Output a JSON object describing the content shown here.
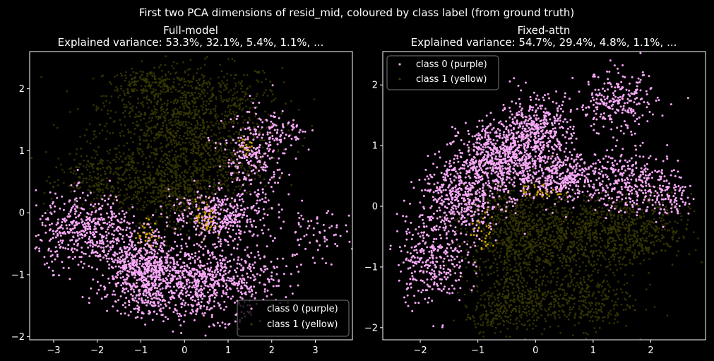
{
  "suptitle": "First two PCA dimensions of resid_mid, coloured by class label (from ground truth)",
  "colors": {
    "background": "#000000",
    "class0": "#f7a8f7",
    "class1": "#3a3a05",
    "class1_boundary": "#c8a000",
    "axes": "#ffffff"
  },
  "chart_data": [
    {
      "type": "scatter",
      "title": "Full-model",
      "subtitle": "Explained variance: 53.3%, 32.1%, 5.4%, 1.1%,  ...",
      "xlabel": "",
      "ylabel": "",
      "xlim": [
        -3.55,
        3.85
      ],
      "ylim": [
        -2.05,
        2.6
      ],
      "xticks": [
        -3,
        -2,
        -1,
        0,
        1,
        2,
        3
      ],
      "xtick_labels": [
        "−3",
        "−2",
        "−1",
        "0",
        "1",
        "2",
        "3"
      ],
      "yticks": [
        -2,
        -1,
        0,
        1,
        2
      ],
      "ytick_labels": [
        "−2",
        "−1",
        "0",
        "1",
        "2"
      ],
      "legend_position": "lower right",
      "series": [
        {
          "name": "class 0 (purple)",
          "color": "#f7a8f7",
          "clusters": [
            {
              "cx": -2.2,
              "cy": -0.3,
              "sx": 0.6,
              "sy": 0.3,
              "n": 500
            },
            {
              "cx": -1.0,
              "cy": -0.85,
              "sx": 0.4,
              "sy": 0.2,
              "n": 400
            },
            {
              "cx": 0.3,
              "cy": -1.1,
              "sx": 0.9,
              "sy": 0.3,
              "n": 900
            },
            {
              "cx": 0.9,
              "cy": -0.05,
              "sx": 0.6,
              "sy": 0.2,
              "n": 350
            },
            {
              "cx": 1.6,
              "cy": 0.9,
              "sx": 0.35,
              "sy": 0.35,
              "n": 250
            },
            {
              "cx": 2.3,
              "cy": 1.3,
              "sx": 0.3,
              "sy": 0.15,
              "n": 60
            },
            {
              "cx": 3.0,
              "cy": -0.4,
              "sx": 0.4,
              "sy": 0.25,
              "n": 70
            },
            {
              "cx": -0.8,
              "cy": -1.4,
              "sx": 0.5,
              "sy": 0.15,
              "n": 120
            }
          ]
        },
        {
          "name": "class 1 (yellow)",
          "color": "#3a3a05",
          "clusters": [
            {
              "cx": 0.2,
              "cy": 1.9,
              "sx": 1.0,
              "sy": 0.25,
              "n": 450
            },
            {
              "cx": -0.9,
              "cy": 2.1,
              "sx": 0.35,
              "sy": 0.1,
              "n": 120
            },
            {
              "cx": 0.0,
              "cy": 1.3,
              "sx": 1.0,
              "sy": 0.3,
              "n": 650
            },
            {
              "cx": -1.1,
              "cy": 0.5,
              "sx": 0.8,
              "sy": 0.3,
              "n": 380
            },
            {
              "cx": -0.2,
              "cy": 0.3,
              "sx": 0.4,
              "sy": 0.35,
              "n": 350
            },
            {
              "cx": 0.8,
              "cy": 0.7,
              "sx": 0.5,
              "sy": 0.25,
              "n": 250
            },
            {
              "cx": -2.2,
              "cy": 0.6,
              "sx": 0.4,
              "sy": 0.2,
              "n": 110
            }
          ]
        },
        {
          "name": "",
          "color": "#c8a000",
          "clusters": [
            {
              "cx": 0.5,
              "cy": -0.1,
              "sx": 0.12,
              "sy": 0.15,
              "n": 60
            },
            {
              "cx": -0.85,
              "cy": -0.35,
              "sx": 0.12,
              "sy": 0.12,
              "n": 40
            },
            {
              "cx": 1.45,
              "cy": 1.1,
              "sx": 0.1,
              "sy": 0.08,
              "n": 20
            }
          ]
        }
      ]
    },
    {
      "type": "scatter",
      "title": "Fixed-attn",
      "subtitle": "Explained variance: 54.7%, 29.4%, 4.8%, 1.1%,  ...",
      "xlabel": "",
      "ylabel": "",
      "xlim": [
        -2.65,
        2.95
      ],
      "ylim": [
        -2.2,
        2.55
      ],
      "xticks": [
        -2,
        -1,
        0,
        1,
        2
      ],
      "xtick_labels": [
        "−2",
        "−1",
        "0",
        "1",
        "2"
      ],
      "yticks": [
        -2,
        -1,
        0,
        1,
        2
      ],
      "ytick_labels": [
        "−2",
        "−1",
        "0",
        "1",
        "2"
      ],
      "legend_position": "upper left",
      "series": [
        {
          "name": "class 0 (purple)",
          "color": "#f7a8f7",
          "clusters": [
            {
              "cx": -1.8,
              "cy": -0.9,
              "sx": 0.3,
              "sy": 0.35,
              "n": 300
            },
            {
              "cx": -1.3,
              "cy": 0.15,
              "sx": 0.35,
              "sy": 0.35,
              "n": 500
            },
            {
              "cx": -0.6,
              "cy": 0.8,
              "sx": 0.35,
              "sy": 0.3,
              "n": 600
            },
            {
              "cx": 0.0,
              "cy": 1.2,
              "sx": 0.3,
              "sy": 0.3,
              "n": 450
            },
            {
              "cx": 0.5,
              "cy": 0.5,
              "sx": 0.4,
              "sy": 0.2,
              "n": 350
            },
            {
              "cx": 1.4,
              "cy": 1.7,
              "sx": 0.35,
              "sy": 0.25,
              "n": 250
            },
            {
              "cx": 1.7,
              "cy": 0.4,
              "sx": 0.4,
              "sy": 0.25,
              "n": 300
            },
            {
              "cx": 2.3,
              "cy": 0.1,
              "sx": 0.25,
              "sy": 0.15,
              "n": 80
            }
          ]
        },
        {
          "name": "class 1 (yellow)",
          "color": "#3a3a05",
          "clusters": [
            {
              "cx": -0.4,
              "cy": -0.4,
              "sx": 0.45,
              "sy": 0.45,
              "n": 700
            },
            {
              "cx": 0.6,
              "cy": -0.5,
              "sx": 0.6,
              "sy": 0.35,
              "n": 650
            },
            {
              "cx": 1.7,
              "cy": -0.4,
              "sx": 0.5,
              "sy": 0.3,
              "n": 450
            },
            {
              "cx": -0.3,
              "cy": -1.55,
              "sx": 0.4,
              "sy": 0.25,
              "n": 350
            },
            {
              "cx": 0.8,
              "cy": -1.55,
              "sx": 0.45,
              "sy": 0.25,
              "n": 300
            },
            {
              "cx": -0.8,
              "cy": -1.85,
              "sx": 0.2,
              "sy": 0.1,
              "n": 60
            }
          ]
        },
        {
          "name": "",
          "color": "#c8a000",
          "clusters": [
            {
              "cx": 0.1,
              "cy": 0.25,
              "sx": 0.2,
              "sy": 0.07,
              "n": 40
            },
            {
              "cx": -0.9,
              "cy": -0.4,
              "sx": 0.1,
              "sy": 0.15,
              "n": 30
            }
          ]
        }
      ]
    }
  ]
}
